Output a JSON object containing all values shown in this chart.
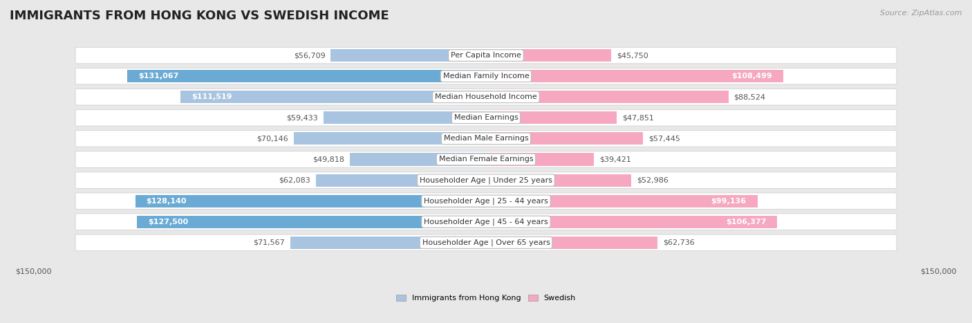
{
  "title": "IMMIGRANTS FROM HONG KONG VS SWEDISH INCOME",
  "source": "Source: ZipAtlas.com",
  "categories": [
    "Per Capita Income",
    "Median Family Income",
    "Median Household Income",
    "Median Earnings",
    "Median Male Earnings",
    "Median Female Earnings",
    "Householder Age | Under 25 years",
    "Householder Age | 25 - 44 years",
    "Householder Age | 45 - 64 years",
    "Householder Age | Over 65 years"
  ],
  "hk_values": [
    56709,
    131067,
    111519,
    59433,
    70146,
    49818,
    62083,
    128140,
    127500,
    71567
  ],
  "sw_values": [
    45750,
    108499,
    88524,
    47851,
    57445,
    39421,
    52986,
    99136,
    106377,
    62736
  ],
  "hk_labels": [
    "$56,709",
    "$131,067",
    "$111,519",
    "$59,433",
    "$70,146",
    "$49,818",
    "$62,083",
    "$128,140",
    "$127,500",
    "$71,567"
  ],
  "sw_labels": [
    "$45,750",
    "$108,499",
    "$88,524",
    "$47,851",
    "$57,445",
    "$39,421",
    "$52,986",
    "$99,136",
    "$106,377",
    "$62,736"
  ],
  "hk_label_inside": [
    false,
    true,
    true,
    false,
    false,
    false,
    false,
    true,
    true,
    false
  ],
  "sw_label_inside": [
    false,
    true,
    false,
    false,
    false,
    false,
    false,
    true,
    true,
    false
  ],
  "max_value": 150000,
  "hk_color_light": "#a8c4e0",
  "hk_color_dark": "#6aaad4",
  "sw_color_light": "#f5a8c0",
  "sw_color_dark": "#f06090",
  "bg_color": "#e8e8e8",
  "row_bg_light": "#f5f5f5",
  "row_bg_white": "#ffffff",
  "legend_hk": "Immigrants from Hong Kong",
  "legend_sw": "Swedish",
  "xlabel_left": "$150,000",
  "xlabel_right": "$150,000",
  "title_fontsize": 13,
  "label_fontsize": 8,
  "category_fontsize": 8,
  "source_fontsize": 8
}
